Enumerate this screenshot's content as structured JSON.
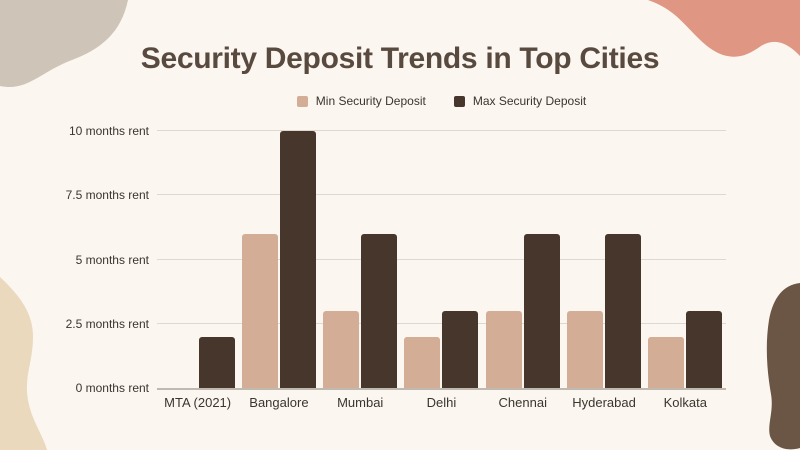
{
  "page": {
    "background": "#FBF6EF"
  },
  "title": {
    "text": "Security Deposit Trends in Top Cities",
    "color": "#594A40"
  },
  "chart_data": {
    "type": "bar",
    "title": "Security Deposit Trends in Top Cities",
    "categories": [
      "MTA (2021)",
      "Bangalore",
      "Mumbai",
      "Delhi",
      "Chennai",
      "Hyderabad",
      "Kolkata"
    ],
    "series": [
      {
        "name": "Min Security Deposit",
        "color": "#D4AD97",
        "values": [
          0,
          6,
          3,
          2,
          3,
          3,
          2
        ]
      },
      {
        "name": "Max Security Deposit",
        "color": "#47362B",
        "values": [
          2,
          10,
          6,
          3,
          6,
          6,
          3
        ]
      }
    ],
    "ylim": [
      0,
      10
    ],
    "ytick_step": 2.5,
    "ytick_labels": [
      "0 months rent",
      "2.5 months rent",
      "5 months rent",
      "7.5 months rent",
      "10 months rent"
    ],
    "xlabel": "",
    "ylabel": "",
    "grid": true,
    "legend_position": "top"
  },
  "colors": {
    "background": "#FBF6EF",
    "gridline": "#DDD8D0",
    "axis_line": "#BFB9B0",
    "axis_text": "#3B352E"
  },
  "decorations": {
    "top_left_blob": "#CEC5B8",
    "top_right_blob": "#DF9783",
    "bottom_left_blob": "#EAD9BC",
    "bottom_right_blob": "#6B5545"
  }
}
